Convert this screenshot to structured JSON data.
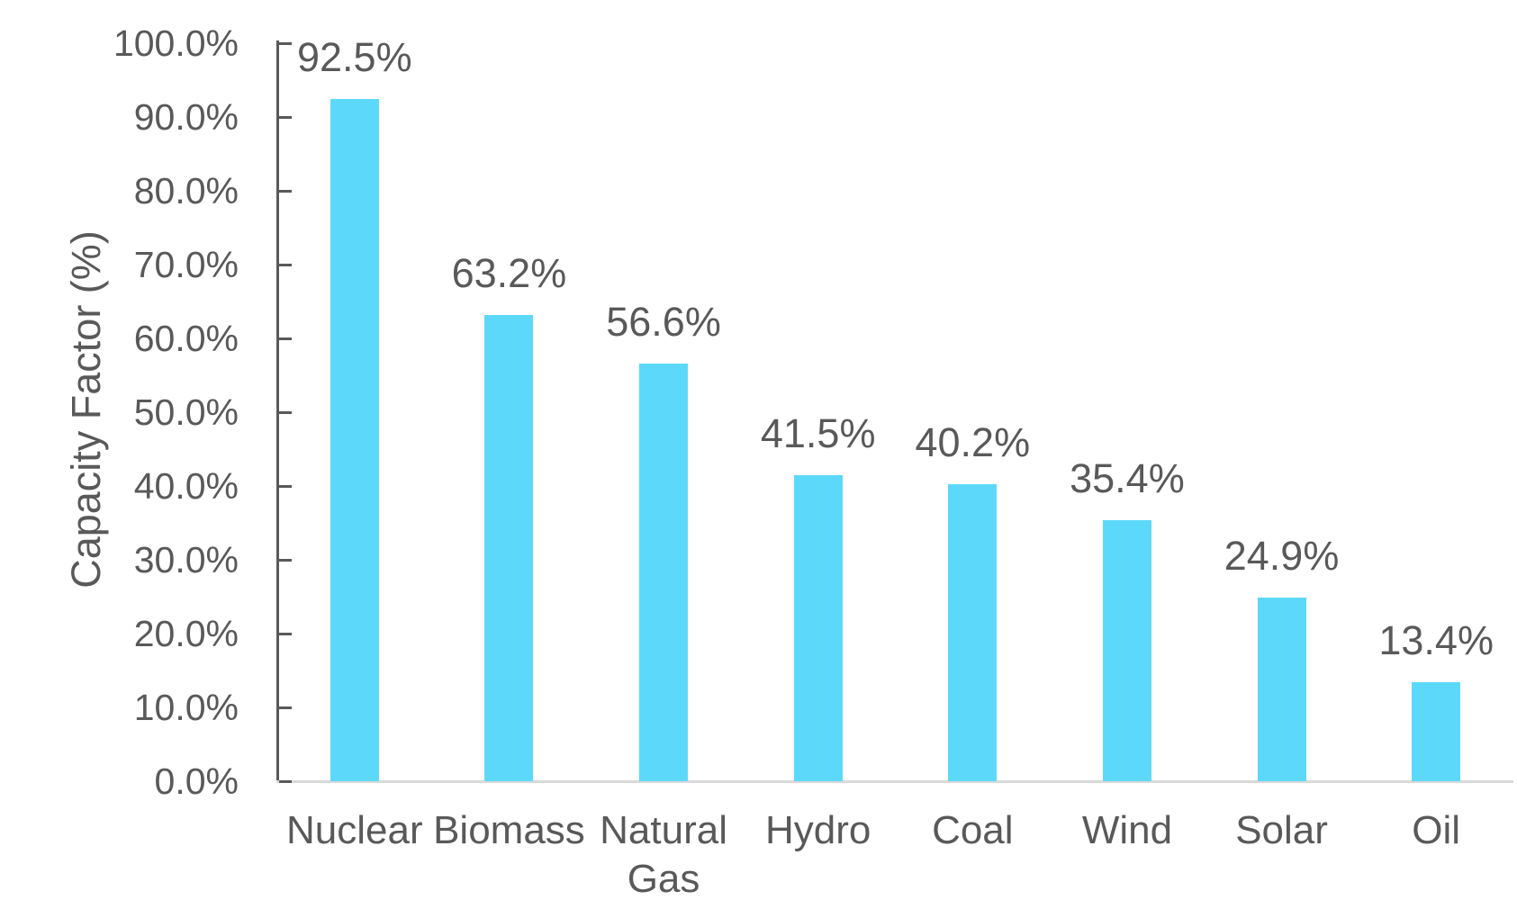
{
  "chart_data": {
    "type": "bar",
    "title": "",
    "xlabel": "",
    "ylabel": "Capacity Factor (%)",
    "categories": [
      "Nuclear",
      "Biomass",
      "Natural Gas",
      "Hydro",
      "Coal",
      "Wind",
      "Solar",
      "Oil"
    ],
    "values": [
      92.5,
      63.2,
      56.6,
      41.5,
      40.2,
      35.4,
      24.9,
      13.4
    ],
    "data_labels": [
      "92.5%",
      "63.2%",
      "56.6%",
      "41.5%",
      "40.2%",
      "35.4%",
      "24.9%",
      "13.4%"
    ],
    "ylim": [
      0,
      100
    ],
    "y_tick_step": 10,
    "y_ticks": [
      {
        "value": 0,
        "label": "0.0%"
      },
      {
        "value": 10,
        "label": "10.0%"
      },
      {
        "value": 20,
        "label": "20.0%"
      },
      {
        "value": 30,
        "label": "30.0%"
      },
      {
        "value": 40,
        "label": "40.0%"
      },
      {
        "value": 50,
        "label": "50.0%"
      },
      {
        "value": 60,
        "label": "60.0%"
      },
      {
        "value": 70,
        "label": "70.0%"
      },
      {
        "value": 80,
        "label": "80.0%"
      },
      {
        "value": 90,
        "label": "90.0%"
      },
      {
        "value": 100,
        "label": "100.0%"
      }
    ],
    "grid": false,
    "legend": false,
    "tick_marks": "inside",
    "colors": {
      "bar_fill": "#5CD9FA",
      "text": "#595959",
      "y_axis_line": "#595959",
      "baseline": "#D9D9D9",
      "background": "#FFFFFF"
    }
  }
}
